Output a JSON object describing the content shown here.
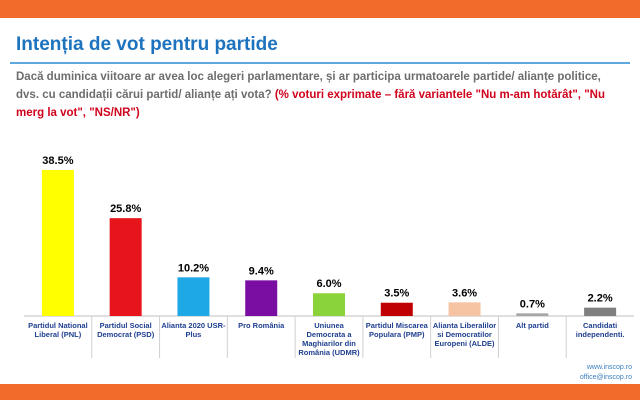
{
  "chart_data": {
    "type": "bar",
    "title": "Intenția de vot pentru partide",
    "question": "Dacă duminica viitoare ar avea loc alegeri parlamentare, și ar participa  urmatoarele partide/ alianțe politice, dvs. cu candidații cărui partid/ alianțe ați vota?",
    "note": "(% voturi exprimate – fără variantele \"Nu m-am hotărât\", \"Nu merg la vot\", \"NS/NR\")",
    "categories": [
      "Partidul National Liberal (PNL)",
      "Partidul Social Democrat (PSD)",
      "Alianta 2020 USR-Plus",
      "Pro România",
      "Uniunea Democrata a Maghiarilor din România (UDMR)",
      "Partidul Miscarea Populara (PMP)",
      "Alianta Liberalilor si Democratilor Europeni (ALDE)",
      "Alt partid",
      "Candidati independenti."
    ],
    "values": [
      38.5,
      25.8,
      10.2,
      9.4,
      6.0,
      3.5,
      3.6,
      0.7,
      2.2
    ],
    "value_labels": [
      "38.5%",
      "25.8%",
      "10.2%",
      "9.4%",
      "6.0%",
      "3.5%",
      "3.6%",
      "0.7%",
      "2.2%"
    ],
    "colors": [
      "#ffff00",
      "#e8141b",
      "#1fa8e6",
      "#7a0ea3",
      "#8bd33a",
      "#c00000",
      "#f7c4a3",
      "#a6a6a6",
      "#7f7f7f"
    ],
    "footer": [
      "www.inscop.ro",
      "office@inscop.ro"
    ]
  }
}
